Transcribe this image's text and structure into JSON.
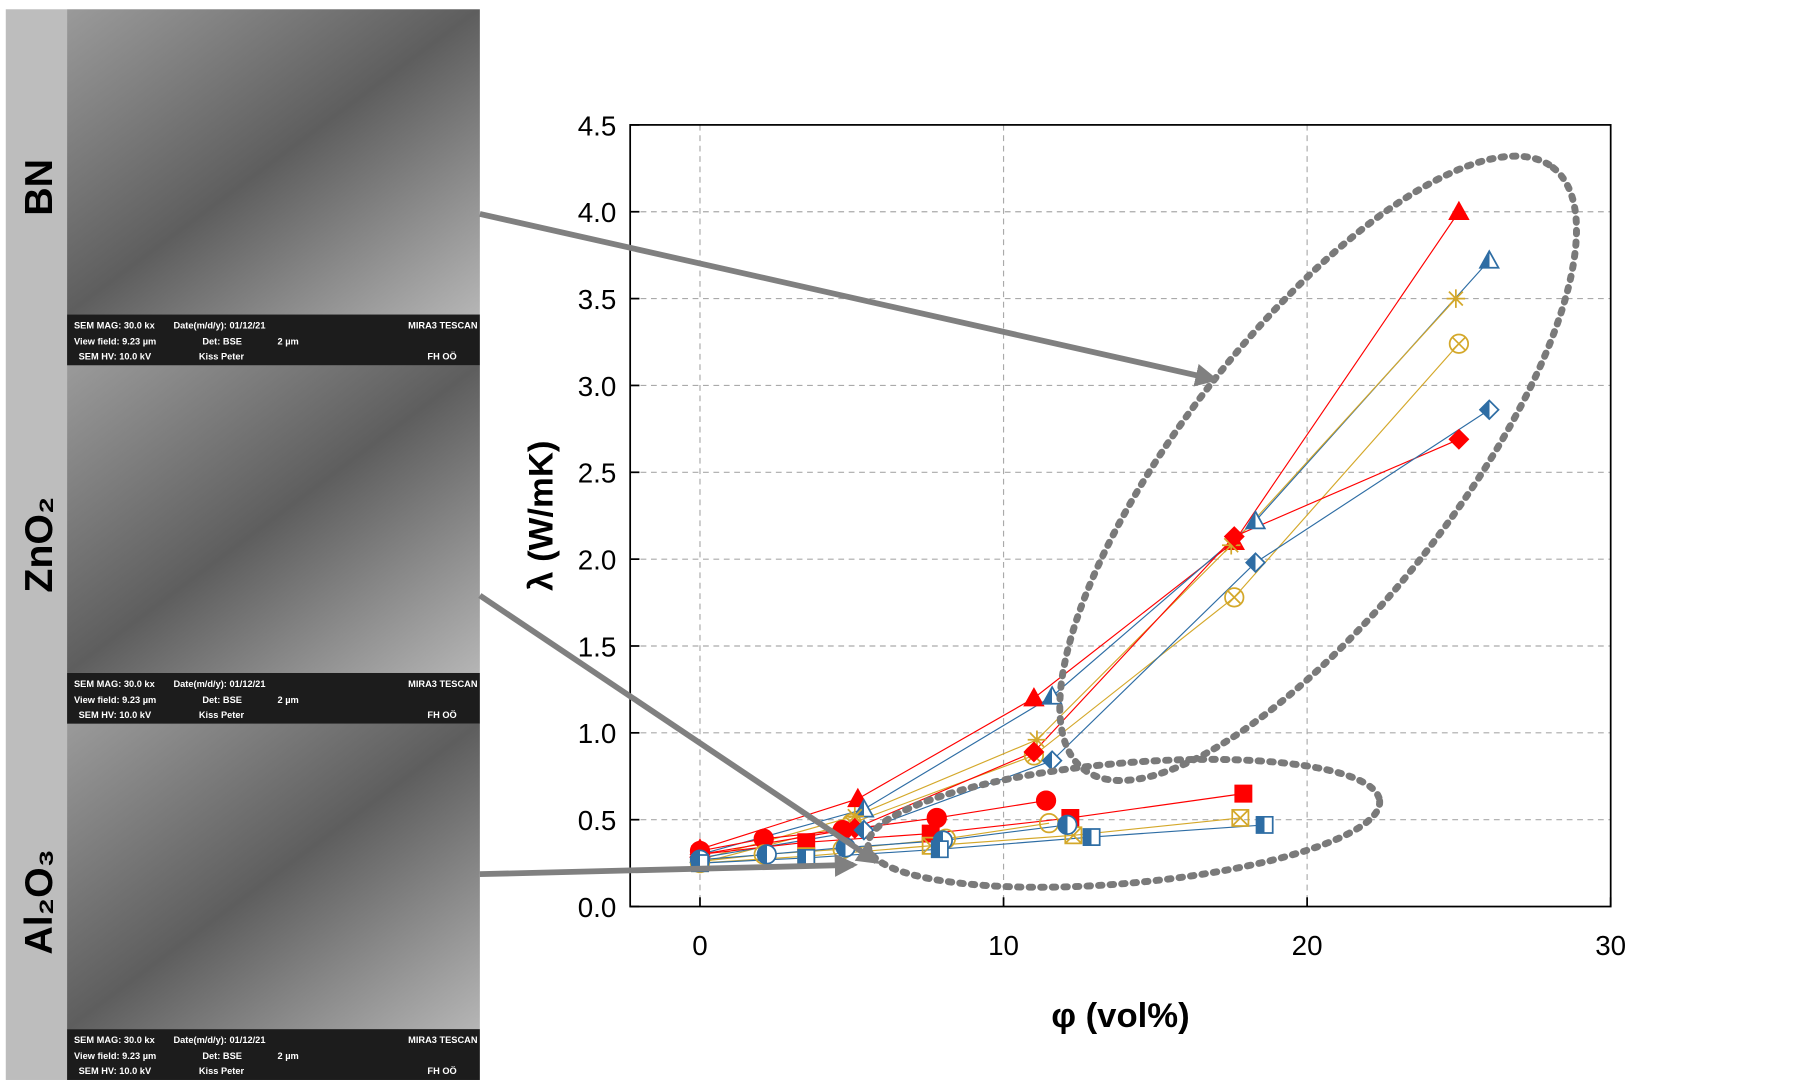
{
  "panels": [
    {
      "label": "BN",
      "info": [
        "SEM MAG: 30.0 kx",
        "Date(m/d/y): 01/12/21",
        "MIRA3 TESCAN",
        "View field: 9.23 µm",
        "Det: BSE",
        "2 µm",
        "SEM HV: 10.0 kV",
        "Kiss Peter",
        "FH OÖ"
      ]
    },
    {
      "label": "ZnO₂",
      "info": [
        "SEM MAG: 30.0 kx",
        "Date(m/d/y): 01/12/21",
        "MIRA3 TESCAN",
        "View field: 9.23 µm",
        "Det: BSE",
        "2 µm",
        "SEM HV: 10.0 kV",
        "Kiss Peter",
        "FH OÖ"
      ]
    },
    {
      "label": "Al₂O₃",
      "info": [
        "SEM MAG: 30.0 kx",
        "Date(m/d/y): 01/12/21",
        "MIRA3 TESCAN",
        "View field: 9.23 µm",
        "Det: BSE",
        "2 µm",
        "SEM HV: 10.0 kV",
        "Kiss Peter",
        "FH OÖ"
      ]
    }
  ],
  "chart_data": {
    "type": "line",
    "x_label": "φ (vol%)",
    "y_label": "λ (W/mK)",
    "xlim": [
      -2.3,
      30
    ],
    "xticks": [
      0,
      10,
      20,
      30
    ],
    "ylim": [
      0,
      4.5
    ],
    "yticks": [
      {
        "value": 0,
        "label": "0.0"
      },
      {
        "value": 0.5,
        "label": "0.5"
      },
      {
        "value": 1,
        "label": "1.0"
      },
      {
        "value": 1.5,
        "label": "1.5"
      },
      {
        "value": 2,
        "label": "2.0"
      },
      {
        "value": 2.5,
        "label": "2.5"
      },
      {
        "value": 3,
        "label": "3.0"
      },
      {
        "value": 3.5,
        "label": "3.5"
      },
      {
        "value": 4,
        "label": "4.0"
      },
      {
        "value": 4.5,
        "label": "4.5"
      }
    ],
    "grid": true,
    "series": [
      {
        "color": "#ff0000",
        "marker": "triangle",
        "fill": "full",
        "x": [
          0,
          5.2,
          11,
          17.6,
          25
        ],
        "values": [
          0.33,
          0.62,
          1.2,
          2.1,
          4.0
        ]
      },
      {
        "color": "#2e6da4",
        "marker": "triangle",
        "fill": "half",
        "x": [
          0,
          5.4,
          11.6,
          18.3,
          26
        ],
        "values": [
          0.3,
          0.56,
          1.21,
          2.22,
          3.72
        ]
      },
      {
        "color": "#d4a82a",
        "marker": "star",
        "fill": "open",
        "x": [
          0,
          5.1,
          11.1,
          17.5,
          24.9
        ],
        "values": [
          0.27,
          0.52,
          0.96,
          2.08,
          3.5
        ]
      },
      {
        "color": "#d4a82a",
        "marker": "circlex",
        "fill": "open",
        "x": [
          0,
          5.0,
          11,
          17.6,
          25
        ],
        "values": [
          0.25,
          0.48,
          0.87,
          1.78,
          3.24
        ]
      },
      {
        "color": "#ff0000",
        "marker": "diamond",
        "fill": "full",
        "x": [
          0,
          5.1,
          11,
          17.6,
          25
        ],
        "values": [
          0.3,
          0.45,
          0.89,
          2.13,
          2.69
        ]
      },
      {
        "color": "#2e6da4",
        "marker": "diamond",
        "fill": "half",
        "x": [
          0,
          5.4,
          11.6,
          18.3,
          26
        ],
        "values": [
          0.28,
          0.44,
          0.84,
          1.98,
          2.86
        ]
      },
      {
        "color": "#ff0000",
        "marker": "circle",
        "fill": "full",
        "x": [
          0,
          2.1,
          4.7,
          7.8,
          11.4
        ],
        "values": [
          0.32,
          0.39,
          0.44,
          0.51,
          0.61
        ]
      },
      {
        "color": "#ff0000",
        "marker": "square",
        "fill": "full",
        "x": [
          0,
          3.5,
          7.6,
          12.2,
          17.9
        ],
        "values": [
          0.3,
          0.37,
          0.42,
          0.51,
          0.65
        ]
      },
      {
        "color": "#d4a82a",
        "marker": "circle",
        "fill": "open",
        "x": [
          0,
          2.1,
          4.7,
          8.1,
          11.5
        ],
        "values": [
          0.26,
          0.3,
          0.33,
          0.39,
          0.48
        ]
      },
      {
        "color": "#d4a82a",
        "marker": "squarex",
        "fill": "open",
        "x": [
          0,
          3.5,
          7.6,
          12.3,
          17.8
        ],
        "values": [
          0.25,
          0.29,
          0.35,
          0.41,
          0.51
        ]
      },
      {
        "color": "#2e6da4",
        "marker": "circle",
        "fill": "half",
        "x": [
          0,
          2.2,
          4.8,
          8,
          12.1
        ],
        "values": [
          0.27,
          0.3,
          0.34,
          0.38,
          0.47
        ]
      },
      {
        "color": "#2e6da4",
        "marker": "square",
        "fill": "half",
        "x": [
          0,
          3.5,
          7.9,
          12.9,
          18.6
        ],
        "values": [
          0.25,
          0.28,
          0.33,
          0.4,
          0.47
        ]
      }
    ]
  }
}
